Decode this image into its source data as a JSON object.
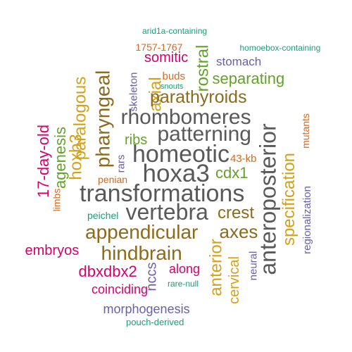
{
  "palette": {
    "gray": "#595959",
    "brown": "#8c6a1e",
    "gold": "#d4a017",
    "green": "#63a12b",
    "magenta": "#d6006e",
    "purple": "#6a5fa8",
    "orange": "#d2691e",
    "teal": "#1b9e77"
  },
  "words": [
    {
      "text": "arid1a-containing",
      "color": "teal"
    },
    {
      "text": "homoebox-containing",
      "color": "teal"
    },
    {
      "text": "1757-1767",
      "color": "orange"
    },
    {
      "text": "somitic",
      "color": "magenta"
    },
    {
      "text": "stomach",
      "color": "purple"
    },
    {
      "text": "rostral",
      "color": "green"
    },
    {
      "text": "pharyngeal",
      "color": "brown"
    },
    {
      "text": "paralogous",
      "color": "gold"
    },
    {
      "text": "skeleton",
      "color": "purple"
    },
    {
      "text": "buds",
      "color": "orange"
    },
    {
      "text": "snouts",
      "color": "teal"
    },
    {
      "text": "separating",
      "color": "green"
    },
    {
      "text": "axial",
      "color": "gold"
    },
    {
      "text": "parathyroids",
      "color": "brown"
    },
    {
      "text": "rhombomeres",
      "color": "gray"
    },
    {
      "text": "patterning",
      "color": "gray"
    },
    {
      "text": "anteroposterior",
      "color": "gray"
    },
    {
      "text": "mutants",
      "color": "orange"
    },
    {
      "text": "17-day-old",
      "color": "magenta"
    },
    {
      "text": "agenesis",
      "color": "green"
    },
    {
      "text": "hoxb3",
      "color": "gold"
    },
    {
      "text": "ribs",
      "color": "green"
    },
    {
      "text": "homeotic",
      "color": "gray"
    },
    {
      "text": "rars",
      "color": "purple"
    },
    {
      "text": "43-kb",
      "color": "orange"
    },
    {
      "text": "hoxa3",
      "color": "gray"
    },
    {
      "text": "cdx1",
      "color": "green"
    },
    {
      "text": "specification",
      "color": "gold"
    },
    {
      "text": "regionalization",
      "color": "purple"
    },
    {
      "text": "penian",
      "color": "orange"
    },
    {
      "text": "transformations",
      "color": "gray"
    },
    {
      "text": "limbs",
      "color": "orange"
    },
    {
      "text": "peichel",
      "color": "teal"
    },
    {
      "text": "vertebra",
      "color": "gray"
    },
    {
      "text": "crest",
      "color": "brown"
    },
    {
      "text": "appendicular",
      "color": "brown"
    },
    {
      "text": "axes",
      "color": "brown"
    },
    {
      "text": "neural",
      "color": "purple"
    },
    {
      "text": "embryos",
      "color": "magenta"
    },
    {
      "text": "hindbrain",
      "color": "brown"
    },
    {
      "text": "anterior",
      "color": "gold"
    },
    {
      "text": "cervical",
      "color": "gold"
    },
    {
      "text": "dbxdbx2",
      "color": "magenta"
    },
    {
      "text": "nccs",
      "color": "purple"
    },
    {
      "text": "along",
      "color": "magenta"
    },
    {
      "text": "rare-null",
      "color": "teal"
    },
    {
      "text": "coinciding",
      "color": "magenta"
    },
    {
      "text": "morphogenesis",
      "color": "purple"
    },
    {
      "text": "pouch-derived",
      "color": "teal"
    }
  ]
}
